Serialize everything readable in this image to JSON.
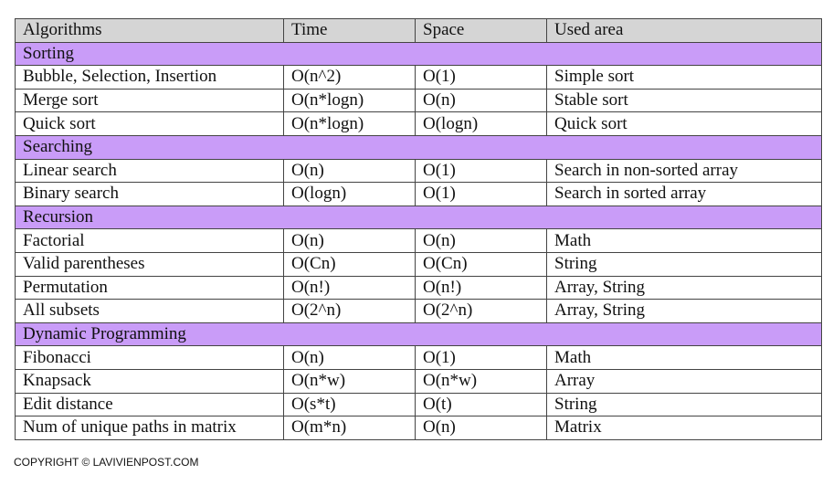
{
  "table": {
    "header": [
      "Algorithms",
      "Time",
      "Space",
      "Used area"
    ],
    "sections": [
      {
        "title": "Sorting",
        "rows": [
          [
            "Bubble, Selection, Insertion",
            "O(n^2)",
            "O(1)",
            "Simple sort"
          ],
          [
            "Merge sort",
            "O(n*logn)",
            "O(n)",
            "Stable sort"
          ],
          [
            "Quick sort",
            "O(n*logn)",
            "O(logn)",
            "Quick sort"
          ]
        ]
      },
      {
        "title": "Searching",
        "rows": [
          [
            "Linear search",
            "O(n)",
            "O(1)",
            "Search in non-sorted array"
          ],
          [
            "Binary search",
            "O(logn)",
            "O(1)",
            "Search in sorted array"
          ]
        ]
      },
      {
        "title": "Recursion",
        "rows": [
          [
            "Factorial",
            "O(n)",
            "O(n)",
            "Math"
          ],
          [
            "Valid parentheses",
            "O(Cn)",
            "O(Cn)",
            "String"
          ],
          [
            "Permutation",
            "O(n!)",
            "O(n!)",
            "Array, String"
          ],
          [
            "All subsets",
            "O(2^n)",
            "O(2^n)",
            "Array, String"
          ]
        ]
      },
      {
        "title": "Dynamic Programming",
        "rows": [
          [
            "Fibonacci",
            "O(n)",
            "O(1)",
            "Math"
          ],
          [
            "Knapsack",
            "O(n*w)",
            "O(n*w)",
            "Array"
          ],
          [
            "Edit distance",
            "O(s*t)",
            "O(t)",
            "String"
          ],
          [
            "Num of unique paths in matrix",
            "O(m*n)",
            "O(n)",
            "Matrix"
          ]
        ]
      }
    ]
  },
  "footer": {
    "copyright": "COPYRIGHT © LAVIVIENPOST.COM"
  }
}
